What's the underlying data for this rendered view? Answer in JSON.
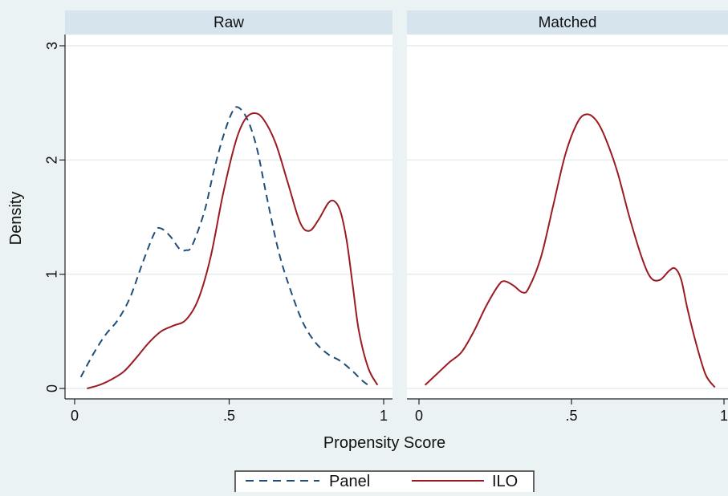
{
  "chart_data": {
    "type": "line",
    "xlabel": "Propensity Score",
    "ylabel": "Density",
    "xlim": [
      0,
      1
    ],
    "ylim": [
      0,
      3
    ],
    "x_ticks": [
      0,
      0.5,
      1
    ],
    "x_tick_labels": [
      "0",
      ".5",
      "1"
    ],
    "y_ticks": [
      0,
      1,
      2,
      3
    ],
    "y_tick_labels": [
      "0",
      "1",
      "2",
      "3"
    ],
    "grid": true,
    "legend_position": "bottom",
    "legend": [
      {
        "name": "Panel",
        "color": "#1f4e79",
        "style": "dashed"
      },
      {
        "name": "ILO",
        "color": "#9b1b22",
        "style": "solid"
      }
    ],
    "panels": [
      {
        "title": "Raw",
        "series": [
          {
            "name": "Panel",
            "color": "#1f4e79",
            "style": "dashed",
            "points": [
              [
                0.02,
                0.1
              ],
              [
                0.06,
                0.3
              ],
              [
                0.1,
                0.47
              ],
              [
                0.14,
                0.6
              ],
              [
                0.18,
                0.8
              ],
              [
                0.22,
                1.1
              ],
              [
                0.26,
                1.37
              ],
              [
                0.28,
                1.4
              ],
              [
                0.31,
                1.33
              ],
              [
                0.34,
                1.22
              ],
              [
                0.36,
                1.21
              ],
              [
                0.38,
                1.25
              ],
              [
                0.42,
                1.55
              ],
              [
                0.45,
                1.9
              ],
              [
                0.48,
                2.2
              ],
              [
                0.51,
                2.42
              ],
              [
                0.53,
                2.46
              ],
              [
                0.56,
                2.35
              ],
              [
                0.59,
                2.1
              ],
              [
                0.62,
                1.7
              ],
              [
                0.66,
                1.2
              ],
              [
                0.7,
                0.85
              ],
              [
                0.74,
                0.57
              ],
              [
                0.78,
                0.4
              ],
              [
                0.82,
                0.3
              ],
              [
                0.86,
                0.24
              ],
              [
                0.9,
                0.15
              ],
              [
                0.93,
                0.07
              ],
              [
                0.96,
                0.01
              ]
            ]
          },
          {
            "name": "ILO",
            "color": "#9b1b22",
            "style": "solid",
            "points": [
              [
                0.04,
                0.0
              ],
              [
                0.08,
                0.03
              ],
              [
                0.12,
                0.08
              ],
              [
                0.16,
                0.15
              ],
              [
                0.2,
                0.27
              ],
              [
                0.24,
                0.4
              ],
              [
                0.28,
                0.5
              ],
              [
                0.32,
                0.55
              ],
              [
                0.36,
                0.6
              ],
              [
                0.4,
                0.78
              ],
              [
                0.44,
                1.15
              ],
              [
                0.48,
                1.7
              ],
              [
                0.52,
                2.15
              ],
              [
                0.55,
                2.35
              ],
              [
                0.58,
                2.41
              ],
              [
                0.61,
                2.36
              ],
              [
                0.65,
                2.15
              ],
              [
                0.69,
                1.8
              ],
              [
                0.73,
                1.45
              ],
              [
                0.76,
                1.38
              ],
              [
                0.79,
                1.48
              ],
              [
                0.82,
                1.62
              ],
              [
                0.84,
                1.64
              ],
              [
                0.86,
                1.55
              ],
              [
                0.88,
                1.3
              ],
              [
                0.9,
                0.9
              ],
              [
                0.92,
                0.5
              ],
              [
                0.95,
                0.18
              ],
              [
                0.98,
                0.03
              ]
            ]
          }
        ]
      },
      {
        "title": "Matched",
        "series": [
          {
            "name": "ILO",
            "color": "#9b1b22",
            "style": "solid",
            "points": [
              [
                0.02,
                0.03
              ],
              [
                0.06,
                0.13
              ],
              [
                0.1,
                0.23
              ],
              [
                0.14,
                0.32
              ],
              [
                0.18,
                0.5
              ],
              [
                0.22,
                0.72
              ],
              [
                0.26,
                0.9
              ],
              [
                0.28,
                0.94
              ],
              [
                0.31,
                0.9
              ],
              [
                0.34,
                0.84
              ],
              [
                0.36,
                0.88
              ],
              [
                0.4,
                1.15
              ],
              [
                0.44,
                1.6
              ],
              [
                0.48,
                2.05
              ],
              [
                0.52,
                2.33
              ],
              [
                0.55,
                2.4
              ],
              [
                0.58,
                2.35
              ],
              [
                0.61,
                2.2
              ],
              [
                0.65,
                1.9
              ],
              [
                0.69,
                1.5
              ],
              [
                0.73,
                1.15
              ],
              [
                0.76,
                0.97
              ],
              [
                0.79,
                0.95
              ],
              [
                0.82,
                1.03
              ],
              [
                0.84,
                1.05
              ],
              [
                0.86,
                0.95
              ],
              [
                0.88,
                0.7
              ],
              [
                0.91,
                0.38
              ],
              [
                0.94,
                0.12
              ],
              [
                0.97,
                0.01
              ]
            ]
          }
        ]
      }
    ]
  }
}
